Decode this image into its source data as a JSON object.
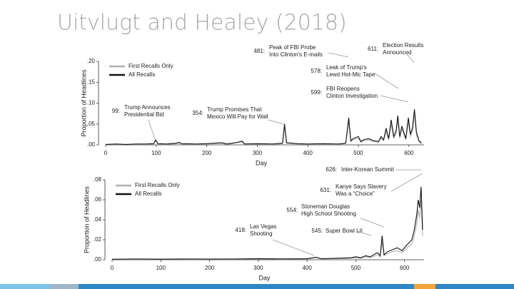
{
  "title": "Uitvlugt and Healey (2018)",
  "chart_data": [
    {
      "type": "line",
      "xlabel": "Day",
      "ylabel": "Proportion of Headlines",
      "xlim": [
        0,
        630
      ],
      "ylim": [
        0,
        0.2
      ],
      "xticks": [
        0,
        100,
        200,
        300,
        400,
        500,
        600
      ],
      "yticks": [
        {
          "value": 0,
          "label": ".00"
        },
        {
          "value": 0.05,
          "label": ".05"
        },
        {
          "value": 0.1,
          "label": ".10"
        },
        {
          "value": 0.15,
          "label": ".15"
        },
        {
          "value": 0.2,
          "label": ".20"
        }
      ],
      "x": [
        0,
        20,
        40,
        60,
        80,
        95,
        99,
        103,
        120,
        140,
        145,
        150,
        180,
        200,
        230,
        240,
        260,
        270,
        275,
        300,
        330,
        350,
        354,
        358,
        380,
        400,
        430,
        460,
        475,
        481,
        485,
        490,
        500,
        505,
        510,
        520,
        530,
        540,
        545,
        550,
        555,
        560,
        565,
        570,
        575,
        578,
        582,
        586,
        590,
        594,
        599,
        603,
        607,
        611,
        615,
        620,
        625
      ],
      "series": [
        {
          "name": "First Recalls Only",
          "color": "#b0b0b0",
          "values": [
            0.001,
            0.001,
            0.001,
            0.001,
            0.001,
            0.002,
            0.01,
            0.002,
            0.001,
            0.003,
            0.005,
            0.002,
            0.001,
            0.002,
            0.004,
            0.001,
            0.005,
            0.007,
            0.001,
            0.002,
            0.001,
            0.003,
            0.042,
            0.004,
            0.002,
            0.001,
            0.002,
            0.001,
            0.003,
            0.055,
            0.008,
            0.012,
            0.016,
            0.006,
            0.01,
            0.012,
            0.008,
            0.006,
            0.016,
            0.01,
            0.032,
            0.012,
            0.05,
            0.016,
            0.028,
            0.06,
            0.016,
            0.038,
            0.025,
            0.012,
            0.055,
            0.02,
            0.032,
            0.072,
            0.024,
            0.008,
            0.003
          ]
        },
        {
          "name": "All Recalls",
          "color": "#111111",
          "values": [
            0.001,
            0.002,
            0.001,
            0.002,
            0.002,
            0.003,
            0.012,
            0.003,
            0.002,
            0.004,
            0.006,
            0.003,
            0.002,
            0.003,
            0.005,
            0.002,
            0.006,
            0.009,
            0.002,
            0.003,
            0.002,
            0.004,
            0.05,
            0.005,
            0.003,
            0.002,
            0.003,
            0.002,
            0.004,
            0.065,
            0.01,
            0.015,
            0.02,
            0.008,
            0.012,
            0.015,
            0.01,
            0.008,
            0.02,
            0.012,
            0.04,
            0.015,
            0.06,
            0.02,
            0.035,
            0.07,
            0.02,
            0.045,
            0.03,
            0.015,
            0.065,
            0.025,
            0.04,
            0.085,
            0.03,
            0.01,
            0.004
          ]
        }
      ],
      "annotations": [
        {
          "day": "481:",
          "text": [
            "Peak of FBI Probe",
            "Into Clinton's E-mails"
          ]
        },
        {
          "day": "611:",
          "text": [
            "Election Results",
            "Announced"
          ]
        },
        {
          "day": "578:",
          "text": [
            "Leak of Trump's",
            "Lewd Hot-Mic Tape"
          ]
        },
        {
          "day": "599:",
          "text": [
            "FBI Reopens",
            "Clinton Investigation"
          ]
        },
        {
          "day": "99:",
          "text": [
            "Trump Announces",
            "Presidential Bid"
          ]
        },
        {
          "day": "354:",
          "text": [
            "Trump Promises That",
            "Mexico Will Pay for Wall"
          ]
        }
      ]
    },
    {
      "type": "line",
      "xlabel": "Day",
      "ylabel": "Proportion of Headlines",
      "xlim": [
        0,
        640
      ],
      "ylim": [
        0,
        0.08
      ],
      "xticks": [
        0,
        100,
        200,
        300,
        400,
        500,
        600
      ],
      "yticks": [
        {
          "value": 0,
          "label": ".00"
        },
        {
          "value": 0.02,
          "label": ".02"
        },
        {
          "value": 0.04,
          "label": ".04"
        },
        {
          "value": 0.06,
          "label": ".06"
        },
        {
          "value": 0.08,
          "label": ".08"
        }
      ],
      "x": [
        0,
        50,
        100,
        150,
        200,
        250,
        300,
        350,
        400,
        418,
        430,
        460,
        490,
        500,
        510,
        520,
        530,
        540,
        545,
        550,
        554,
        558,
        565,
        575,
        585,
        595,
        605,
        615,
        620,
        625,
        628,
        631,
        634,
        637
      ],
      "series": [
        {
          "name": "First Recalls Only",
          "color": "#b0b0b0",
          "values": [
            0.0004,
            0.0006,
            0.0005,
            0.0006,
            0.0005,
            0.0006,
            0.0008,
            0.0007,
            0.0008,
            0.002,
            0.0008,
            0.0012,
            0.0015,
            0.002,
            0.0015,
            0.003,
            0.002,
            0.004,
            0.005,
            0.003,
            0.018,
            0.004,
            0.006,
            0.008,
            0.009,
            0.007,
            0.012,
            0.016,
            0.024,
            0.036,
            0.05,
            0.042,
            0.06,
            0.024
          ]
        },
        {
          "name": "All Recalls",
          "color": "#111111",
          "values": [
            0.0005,
            0.0008,
            0.0006,
            0.0008,
            0.0007,
            0.0008,
            0.001,
            0.0009,
            0.001,
            0.0025,
            0.001,
            0.0015,
            0.002,
            0.003,
            0.002,
            0.004,
            0.003,
            0.006,
            0.007,
            0.004,
            0.024,
            0.005,
            0.008,
            0.01,
            0.012,
            0.009,
            0.015,
            0.02,
            0.03,
            0.045,
            0.06,
            0.052,
            0.073,
            0.03
          ]
        }
      ],
      "annotations": [
        {
          "day": "626:",
          "text": [
            "Inter-Korean Summit"
          ]
        },
        {
          "day": "631:",
          "text": [
            "Kanye Says Slavery",
            "Was a “Choice”"
          ]
        },
        {
          "day": "554:",
          "text": [
            "Stoneman Douglas",
            "High School Shooting"
          ]
        },
        {
          "day": "418:",
          "text": [
            "Las Vegas",
            "Shooting"
          ]
        },
        {
          "day": "545:",
          "text": [
            "Super Bowl LII"
          ]
        }
      ]
    }
  ]
}
